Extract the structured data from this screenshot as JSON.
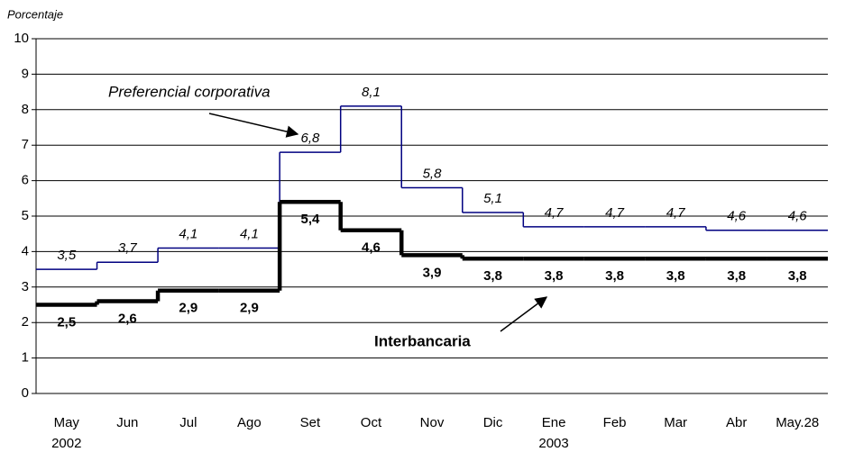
{
  "chart_data": {
    "type": "step",
    "y_axis_label": "Porcentaje",
    "categories": [
      "May 2002",
      "Jun",
      "Jul",
      "Ago",
      "Set",
      "Oct",
      "Nov",
      "Dic",
      "Ene 2003",
      "Feb",
      "Mar",
      "Abr",
      "May.28"
    ],
    "series": [
      {
        "name": "Preferencial corporativa",
        "color": "#000080",
        "values": [
          3.5,
          3.7,
          4.1,
          4.1,
          6.8,
          8.1,
          5.8,
          5.1,
          4.7,
          4.7,
          4.7,
          4.6,
          4.6
        ],
        "value_labels": [
          "3,5",
          "3,7",
          "4,1",
          "4,1",
          "6,8",
          "8,1",
          "5,8",
          "5,1",
          "4,7",
          "4,7",
          "4,7",
          "4,6",
          "4,6"
        ]
      },
      {
        "name": "Interbancaria",
        "color": "#000000",
        "values": [
          2.5,
          2.6,
          2.9,
          2.9,
          5.4,
          4.6,
          3.9,
          3.8,
          3.8,
          3.8,
          3.8,
          3.8,
          3.8
        ],
        "value_labels": [
          "2,5",
          "2,6",
          "2,9",
          "2,9",
          "5,4",
          "4,6",
          "3,9",
          "3,8",
          "3,8",
          "3,8",
          "3,8",
          "3,8",
          "3,8"
        ]
      }
    ],
    "ylim": [
      0,
      10
    ],
    "yticks": [
      0,
      1,
      2,
      3,
      4,
      5,
      6,
      7,
      8,
      9,
      10
    ],
    "grid": true
  }
}
